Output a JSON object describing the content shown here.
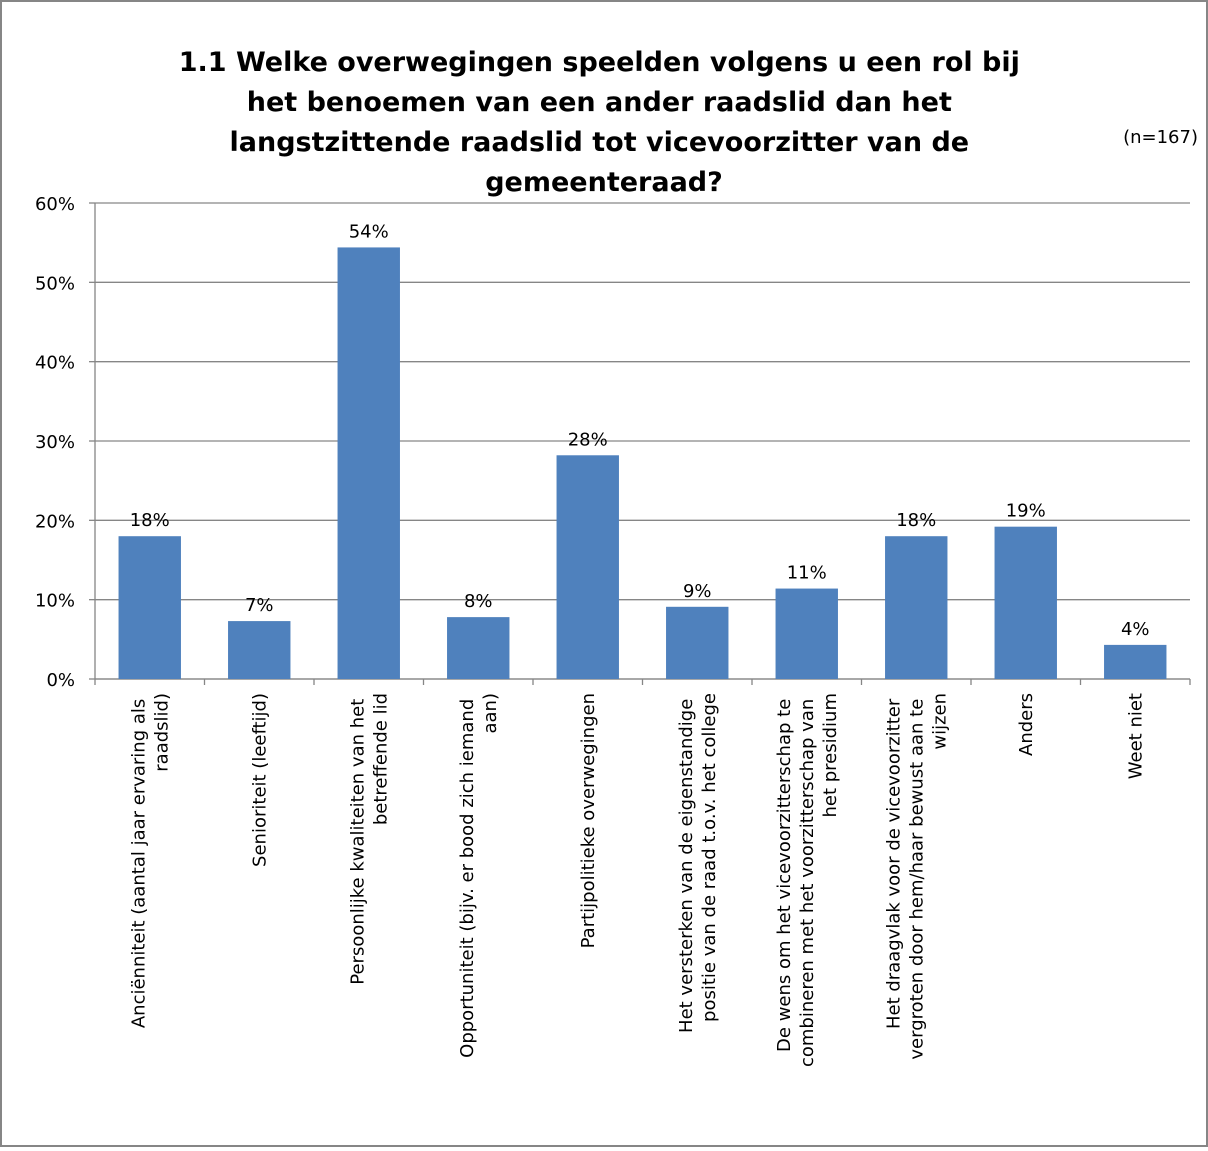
{
  "chart_data": {
    "type": "bar",
    "title": "1.1 Welke overwegingen speelden volgens u een rol bij het benoemen van een ander raadslid dan het langstzittende raadslid tot vicevoorzitter van de gemeenteraad?",
    "subtitle": "(n=167)",
    "categories": [
      "Anciënniteit (aantal jaar ervaring als raadslid)",
      "Senioriteit (leeftijd)",
      "Persoonlijke kwaliteiten van het betreffende lid",
      "Opportuniteit (bijv. er bood zich iemand aan)",
      "Partijpolitieke overwegingen",
      "Het versterken van de eigenstandige positie van de raad t.o.v. het college",
      "De wens om het vicevoorzitterschap te combineren met het voorzitterschap van het presidium",
      "Het draagvlak voor de vicevoorzitter vergroten door hem/haar bewust aan te wijzen",
      "Anders",
      "Weet niet"
    ],
    "values": [
      18.0,
      7.3,
      54.4,
      7.8,
      28.2,
      9.1,
      11.4,
      18.0,
      19.2,
      4.3
    ],
    "value_labels": [
      "18%",
      "7%",
      "54%",
      "8%",
      "28%",
      "9%",
      "11%",
      "18%",
      "19%",
      "4%"
    ],
    "color": "#4f81bd",
    "ylim": [
      0,
      60
    ],
    "yticks": [
      {
        "value": 0,
        "label": "0%"
      },
      {
        "value": 10,
        "label": "10%"
      },
      {
        "value": 20,
        "label": "20%"
      },
      {
        "value": 30,
        "label": "30%"
      },
      {
        "value": 40,
        "label": "40%"
      },
      {
        "value": 50,
        "label": "50%"
      },
      {
        "value": 60,
        "label": "60%"
      }
    ],
    "grid": true
  }
}
